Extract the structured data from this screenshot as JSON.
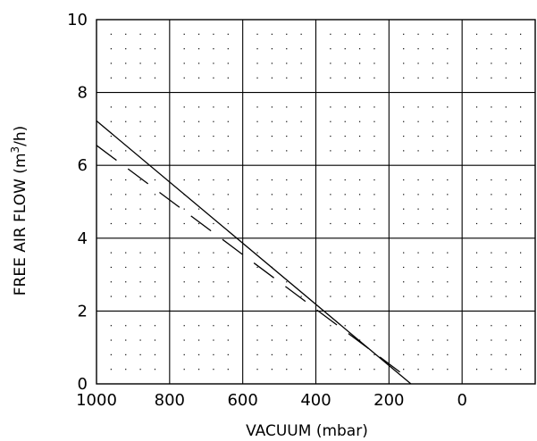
{
  "chart_data": {
    "type": "line",
    "title": "",
    "xlabel": "VACUUM (mbar)",
    "ylabel_main": "FREE AIR FLOW (m",
    "ylabel_sup": "3",
    "ylabel_tail": "/h)",
    "xlim": [
      1000,
      -200
    ],
    "ylim": [
      0,
      10
    ],
    "x_ticks": [
      1000,
      800,
      600,
      400,
      200,
      0
    ],
    "y_ticks": [
      0,
      2,
      4,
      6,
      8,
      10
    ],
    "grid": true,
    "minor_dots": true,
    "series": [
      {
        "style": "solid",
        "x": [
          1000,
          140
        ],
        "y": [
          7.22,
          0.0
        ]
      },
      {
        "style": "dashed",
        "x": [
          1000,
          160
        ],
        "y": [
          6.55,
          0.25
        ]
      }
    ]
  }
}
